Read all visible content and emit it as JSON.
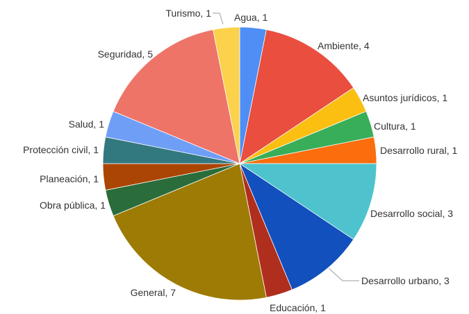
{
  "chart_data": {
    "type": "pie",
    "title": "",
    "slices": [
      {
        "label": "Agua",
        "value": 1,
        "text": "Agua, 1",
        "color": "#4f8ef5"
      },
      {
        "label": "Ambiente",
        "value": 4,
        "text": "Ambiente, 4",
        "color": "#e94e3f"
      },
      {
        "label": "Asuntos jurídicos",
        "value": 1,
        "text": "Asuntos jurídicos, 1",
        "color": "#fbbf12"
      },
      {
        "label": "Cultura",
        "value": 1,
        "text": "Cultura, 1",
        "color": "#38ae59"
      },
      {
        "label": "Desarrollo rural",
        "value": 1,
        "text": "Desarrollo rural, 1",
        "color": "#fb6d0d"
      },
      {
        "label": "Desarrollo social",
        "value": 3,
        "text": "Desarrollo social, 3",
        "color": "#4ec3cd"
      },
      {
        "label": "Desarrollo urbano",
        "value": 3,
        "text": "Desarrollo urbano, 3",
        "color": "#1150bd"
      },
      {
        "label": "Educación",
        "value": 1,
        "text": "Educación, 1",
        "color": "#b02e1e"
      },
      {
        "label": "General",
        "value": 7,
        "text": "General, 7",
        "color": "#9d7b04"
      },
      {
        "label": "Obra pública",
        "value": 1,
        "text": "Obra pública, 1",
        "color": "#2a6c3a"
      },
      {
        "label": "Planeación",
        "value": 1,
        "text": "Planeación, 1",
        "color": "#aa4503"
      },
      {
        "label": "Protección civil",
        "value": 1,
        "text": "Protección civil, 1",
        "color": "#32787f"
      },
      {
        "label": "Salud",
        "value": 1,
        "text": "Salud, 1",
        "color": "#6f9ef7"
      },
      {
        "label": "Seguridad",
        "value": 5,
        "text": "Seguridad, 5",
        "color": "#ee7468"
      },
      {
        "label": "Turismo",
        "value": 1,
        "text": "Turismo, 1",
        "color": "#fcd14b"
      }
    ]
  }
}
